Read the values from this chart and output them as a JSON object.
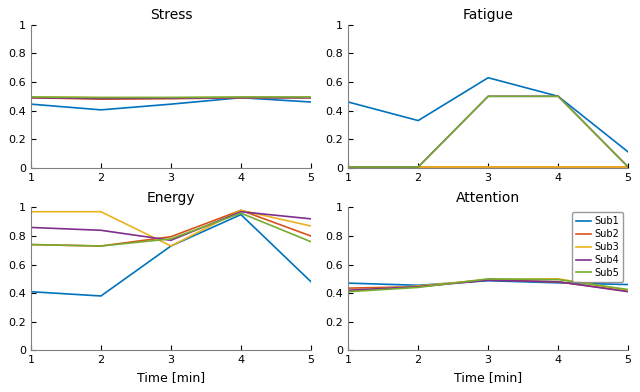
{
  "x": [
    1,
    2,
    3,
    4,
    5
  ],
  "stress": {
    "sub1": [
      0.445,
      0.405,
      0.445,
      0.49,
      0.46
    ],
    "sub2": [
      0.49,
      0.48,
      0.483,
      0.49,
      0.49
    ],
    "sub3": [
      0.495,
      0.49,
      0.49,
      0.492,
      0.492
    ],
    "sub4": [
      0.49,
      0.485,
      0.487,
      0.49,
      0.49
    ],
    "sub5": [
      0.495,
      0.492,
      0.492,
      0.495,
      0.495
    ]
  },
  "fatigue": {
    "sub1": [
      0.46,
      0.33,
      0.63,
      0.5,
      0.11
    ],
    "sub2": [
      0.005,
      0.005,
      0.005,
      0.005,
      0.005
    ],
    "sub3": [
      0.005,
      0.005,
      0.005,
      0.005,
      0.005
    ],
    "sub4": [
      0.005,
      0.005,
      0.5,
      0.5,
      0.005
    ],
    "sub5": [
      0.005,
      0.005,
      0.5,
      0.5,
      0.005
    ]
  },
  "energy": {
    "sub1": [
      0.41,
      0.38,
      0.73,
      0.95,
      0.48
    ],
    "sub2": [
      0.74,
      0.73,
      0.795,
      0.98,
      0.8
    ],
    "sub3": [
      0.97,
      0.97,
      0.73,
      0.98,
      0.87
    ],
    "sub4": [
      0.86,
      0.84,
      0.77,
      0.97,
      0.92
    ],
    "sub5": [
      0.74,
      0.73,
      0.78,
      0.96,
      0.76
    ]
  },
  "attention": {
    "sub1": [
      0.47,
      0.455,
      0.487,
      0.472,
      0.46
    ],
    "sub2": [
      0.435,
      0.445,
      0.495,
      0.478,
      0.415
    ],
    "sub3": [
      0.415,
      0.45,
      0.495,
      0.5,
      0.42
    ],
    "sub4": [
      0.42,
      0.445,
      0.49,
      0.48,
      0.41
    ],
    "sub5": [
      0.41,
      0.44,
      0.5,
      0.495,
      0.425
    ]
  },
  "colors": {
    "sub1": "#0072BD",
    "sub2": "#D95319",
    "sub3": "#EDB120",
    "sub4": "#7E2F8E",
    "sub5": "#77AC30"
  },
  "legend_labels": [
    "Sub1",
    "Sub2",
    "Sub3",
    "Sub4",
    "Sub5"
  ],
  "titles": [
    "Stress",
    "Fatigue",
    "Energy",
    "Attention"
  ],
  "xlabel": "Time [min]",
  "ylim": [
    0,
    1
  ],
  "xlim": [
    1,
    5
  ]
}
